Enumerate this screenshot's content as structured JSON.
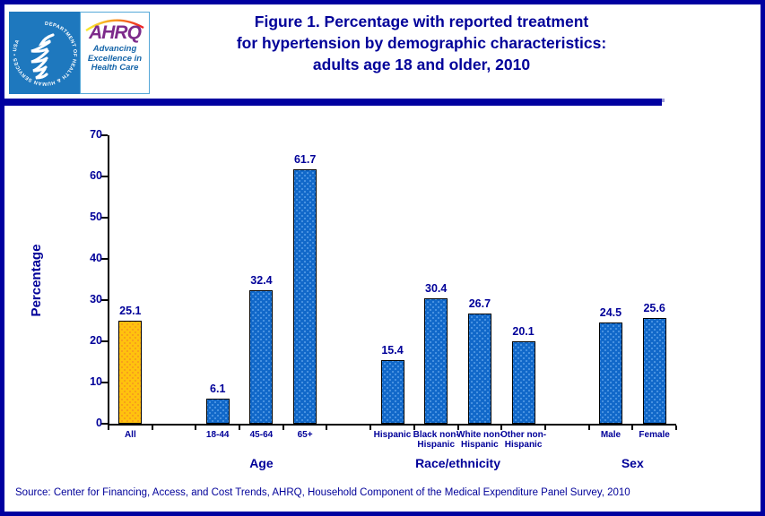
{
  "header": {
    "title_lines": [
      "Figure 1. Percentage with reported treatment",
      "for hypertension by demographic characteristics:",
      "adults age 18 and older, 2010"
    ]
  },
  "logo": {
    "hhs_circle_text": "DEPARTMENT OF HEALTH & HUMAN SERVICES • USA",
    "ahrq_acronym": "AHRQ",
    "tagline_lines": [
      "Advancing",
      "Excellence in",
      "Health Care"
    ]
  },
  "footer": {
    "source": "Source: Center for Financing, Access, and Cost Trends, AHRQ, Household Component of the Medical Expenditure Panel Survey, 2010"
  },
  "theme": {
    "navy": "#0000A0",
    "navy_text": "#000099",
    "bar_blue": "#1168C9",
    "bar_blue_dot": "#4F97E3",
    "bar_gold": "#FFC20E",
    "bar_gold_dot": "#F79C1D",
    "hhs_blue": "#1E78BE",
    "ahrq_purple": "#7D2B8B",
    "tagline_blue": "#1464A8"
  },
  "chart_data": {
    "type": "bar",
    "title": "Figure 1. Percentage with reported treatment for hypertension by demographic characteristics: adults age 18 and older, 2010",
    "ylabel": "Percentage",
    "xlabel": "",
    "ylim": [
      0,
      70
    ],
    "yticks": [
      0,
      10,
      20,
      30,
      40,
      50,
      60,
      70
    ],
    "grid": false,
    "legend": "none",
    "groups": [
      {
        "label": "",
        "categories": [
          {
            "label": "All",
            "value": 25.1,
            "highlight": true
          }
        ]
      },
      {
        "label": "Age",
        "categories": [
          {
            "label": "18-44",
            "value": 6.1
          },
          {
            "label": "45-64",
            "value": 32.4
          },
          {
            "label": "65+",
            "value": 61.7
          }
        ]
      },
      {
        "label": "Race/ethnicity",
        "categories": [
          {
            "label": "Hispanic",
            "value": 15.4
          },
          {
            "label": "Black non-\nHispanic",
            "value": 30.4
          },
          {
            "label": "White non-\nHispanic",
            "value": 26.7
          },
          {
            "label": "Other non-\nHispanic",
            "value": 20.1
          }
        ]
      },
      {
        "label": "Sex",
        "categories": [
          {
            "label": "Male",
            "value": 24.5
          },
          {
            "label": "Female",
            "value": 25.6
          }
        ]
      }
    ]
  }
}
